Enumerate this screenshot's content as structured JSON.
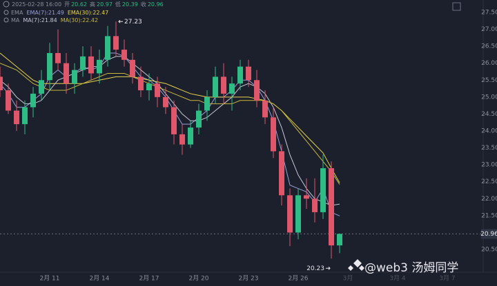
{
  "chart_data": {
    "type": "candlestick",
    "header": {
      "time": "2025-02-28 16:00",
      "items": [
        {
          "label": "开",
          "value": 20.62
        },
        {
          "label": "高",
          "value": 20.97
        },
        {
          "label": "低",
          "value": 20.39
        },
        {
          "label": "收",
          "value": 20.96
        }
      ]
    },
    "legend_groups": [
      "EMA",
      "MA"
    ],
    "categories": [
      null,
      null,
      null,
      null,
      null,
      null,
      "2月 11",
      null,
      null,
      null,
      null,
      null,
      "2月 14",
      null,
      null,
      null,
      null,
      null,
      "2月 17",
      null,
      null,
      null,
      null,
      null,
      "2月 20",
      null,
      null,
      null,
      null,
      null,
      "2月 23",
      null,
      null,
      null,
      null,
      null,
      "2月 26",
      null,
      null,
      null,
      null,
      null,
      "3月",
      null,
      null,
      null,
      null,
      null,
      "3月 4",
      null,
      null,
      null,
      null,
      null,
      "3月 7",
      null,
      null,
      null
    ],
    "open": [
      25.6,
      25.2,
      24.6,
      24.2,
      24.7,
      25.1,
      25.5,
      26.3,
      26.0,
      25.4,
      25.8,
      26.2,
      25.7,
      26.1,
      26.8,
      26.4,
      26.1,
      25.6,
      25.2,
      25.4,
      25.0,
      24.7,
      23.9,
      23.6,
      24.1,
      24.6,
      25.0,
      25.6,
      25.1,
      25.4,
      25.9,
      25.5,
      24.9,
      24.4,
      23.4,
      22.1,
      21.0,
      22.1,
      22.0,
      21.6,
      22.9,
      20.62,
      null,
      null,
      null,
      null,
      null,
      null,
      null,
      null,
      null,
      null,
      null,
      null,
      null,
      null,
      null,
      null
    ],
    "high": [
      25.9,
      25.4,
      24.9,
      24.9,
      25.3,
      25.8,
      26.6,
      27.0,
      26.3,
      26.0,
      26.5,
      26.5,
      26.4,
      27.1,
      27.23,
      26.7,
      26.3,
      25.9,
      25.7,
      25.6,
      25.3,
      24.9,
      24.2,
      24.3,
      24.8,
      25.2,
      25.9,
      26.0,
      25.6,
      26.1,
      26.1,
      25.8,
      25.2,
      24.7,
      23.6,
      22.3,
      22.3,
      22.6,
      22.6,
      23.3,
      23.1,
      20.97,
      null,
      null,
      null,
      null,
      null,
      null,
      null,
      null,
      null,
      null,
      null,
      null,
      null,
      null,
      null,
      null
    ],
    "low": [
      25.0,
      24.5,
      24.0,
      23.9,
      24.4,
      24.9,
      25.2,
      25.8,
      25.1,
      25.1,
      25.6,
      25.5,
      25.4,
      25.9,
      26.2,
      25.9,
      25.4,
      25.0,
      24.9,
      24.7,
      24.5,
      23.6,
      23.3,
      23.5,
      23.9,
      24.3,
      24.8,
      24.8,
      24.6,
      25.2,
      25.3,
      24.7,
      24.2,
      23.2,
      21.8,
      20.6,
      20.8,
      21.7,
      21.3,
      21.4,
      20.23,
      20.39,
      null,
      null,
      null,
      null,
      null,
      null,
      null,
      null,
      null,
      null,
      null,
      null,
      null,
      null,
      null,
      null
    ],
    "close": [
      25.2,
      24.6,
      24.2,
      24.7,
      25.1,
      25.5,
      26.3,
      26.0,
      25.4,
      25.8,
      26.2,
      25.7,
      26.1,
      26.8,
      26.4,
      26.1,
      25.6,
      25.2,
      25.4,
      25.0,
      24.7,
      23.9,
      23.6,
      24.1,
      24.6,
      25.0,
      25.6,
      25.1,
      25.4,
      25.9,
      25.5,
      24.9,
      24.4,
      23.4,
      22.1,
      21.0,
      22.1,
      22.0,
      21.6,
      22.9,
      20.62,
      20.96,
      null,
      null,
      null,
      null,
      null,
      null,
      null,
      null,
      null,
      null,
      null,
      null,
      null,
      null,
      null,
      null
    ],
    "up_color": "#2ebd85",
    "down_color": "#e0566a",
    "series": [
      {
        "name": "EMA(7):",
        "group": 0,
        "color": "#9a9fd8",
        "values": [
          25.4,
          25.1,
          24.7,
          24.7,
          24.9,
          25.1,
          25.6,
          25.8,
          25.6,
          25.7,
          25.9,
          25.8,
          25.9,
          26.3,
          26.3,
          26.2,
          25.9,
          25.6,
          25.5,
          25.3,
          25.0,
          24.6,
          24.2,
          24.2,
          24.4,
          24.6,
          25.0,
          25.0,
          25.2,
          25.5,
          25.5,
          25.3,
          24.9,
          24.3,
          23.4,
          22.4,
          22.3,
          22.2,
          21.9,
          22.3,
          21.6,
          21.49,
          null,
          null,
          null,
          null,
          null,
          null,
          null,
          null,
          null,
          null,
          null,
          null,
          null,
          null,
          null,
          null
        ]
      },
      {
        "name": "EMA(30):",
        "group": 0,
        "color": "#e8d44d",
        "values": [
          26.3,
          26.1,
          25.9,
          25.7,
          25.5,
          25.4,
          25.4,
          25.4,
          25.4,
          25.4,
          25.4,
          25.45,
          25.5,
          25.55,
          25.6,
          25.6,
          25.6,
          25.55,
          25.5,
          25.45,
          25.4,
          25.3,
          25.2,
          25.1,
          25.05,
          25.0,
          25.0,
          25.0,
          25.0,
          25.0,
          25.0,
          24.95,
          24.9,
          24.8,
          24.6,
          24.35,
          24.1,
          23.85,
          23.6,
          23.35,
          22.9,
          22.47,
          null,
          null,
          null,
          null,
          null,
          null,
          null,
          null,
          null,
          null,
          null,
          null,
          null,
          null,
          null,
          null
        ]
      },
      {
        "name": "MA(7):",
        "group": 1,
        "color": "#c7c7d8",
        "values": [
          25.5,
          25.3,
          25.0,
          24.8,
          24.8,
          24.9,
          25.2,
          25.5,
          25.6,
          25.7,
          25.8,
          25.9,
          25.9,
          26.1,
          26.2,
          26.2,
          26.0,
          25.8,
          25.6,
          25.4,
          25.1,
          24.8,
          24.5,
          24.3,
          24.3,
          24.4,
          24.6,
          24.8,
          25.0,
          25.3,
          25.4,
          25.3,
          25.1,
          24.7,
          24.1,
          23.3,
          22.7,
          22.3,
          22.0,
          21.9,
          21.8,
          21.84,
          null,
          null,
          null,
          null,
          null,
          null,
          null,
          null,
          null,
          null,
          null,
          null,
          null,
          null,
          null,
          null
        ]
      },
      {
        "name": "MA(30):",
        "group": 1,
        "color": "#c9b83a",
        "values": [
          26.0,
          25.9,
          25.8,
          25.6,
          25.4,
          25.3,
          25.2,
          25.2,
          25.2,
          25.3,
          25.4,
          25.5,
          25.6,
          25.7,
          25.7,
          25.7,
          25.6,
          25.5,
          25.4,
          25.3,
          25.2,
          25.1,
          25.0,
          24.9,
          24.9,
          24.8,
          24.8,
          24.8,
          24.8,
          24.9,
          24.9,
          24.9,
          24.9,
          24.8,
          24.6,
          24.3,
          24.0,
          23.7,
          23.4,
          23.1,
          22.8,
          22.42,
          null,
          null,
          null,
          null,
          null,
          null,
          null,
          null,
          null,
          null,
          null,
          null,
          null,
          null,
          null,
          null
        ]
      }
    ],
    "ylim": [
      20.25,
      27.75
    ],
    "yticks": [
      {
        "value": 20.5,
        "label": "20.50"
      },
      {
        "value": 21,
        "label": "21.00"
      },
      {
        "value": 21.5,
        "label": "21.50"
      },
      {
        "value": 22,
        "label": "22.00"
      },
      {
        "value": 22.5,
        "label": "22.50"
      },
      {
        "value": 23,
        "label": "23.00"
      },
      {
        "value": 23.5,
        "label": "23.50"
      },
      {
        "value": 24,
        "label": "24.00"
      },
      {
        "value": 24.5,
        "label": "24.50"
      },
      {
        "value": 25,
        "label": "25.00"
      },
      {
        "value": 25.5,
        "label": "25.50"
      },
      {
        "value": 26,
        "label": "26.00"
      },
      {
        "value": 26.5,
        "label": "26.50"
      },
      {
        "value": 27,
        "label": "27.00"
      },
      {
        "value": 27.5,
        "label": "27.50"
      }
    ],
    "last_price": 20.96,
    "max_label": 27.23,
    "min_label": 20.23,
    "watermark": "@web3 汤姆同学"
  }
}
